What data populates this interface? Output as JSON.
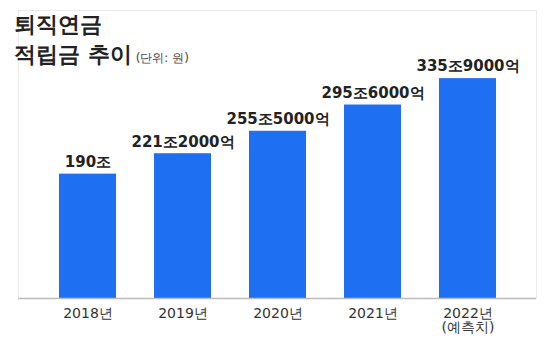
{
  "chart_data": {
    "type": "bar",
    "title": "퇴직연금\n적립금 추이",
    "subtitle": "(단위: 원)",
    "categories": [
      "2018년",
      "2019년",
      "2020년",
      "2021년",
      "2022년\n(예측치)"
    ],
    "values": [
      190,
      221.2,
      255.5,
      295.6,
      335.9
    ],
    "value_labels": [
      "190조",
      "221조2000억",
      "255조5000억",
      "295조6000억",
      "335조9000억"
    ],
    "color": "#1f6ff2",
    "ylim": [
      0,
      440
    ],
    "grid": false,
    "data_labels": true,
    "tick_labels": "x"
  }
}
